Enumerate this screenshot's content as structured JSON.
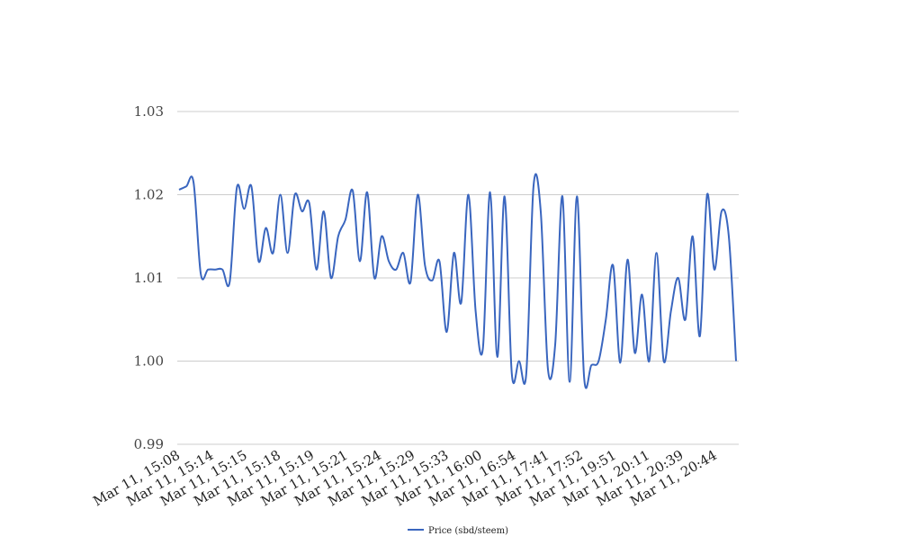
{
  "chart_data": {
    "type": "line",
    "title": "",
    "xlabel": "",
    "ylabel": "",
    "ylim": [
      0.99,
      1.03
    ],
    "y_ticks": [
      "0.99",
      "1.00",
      "1.01",
      "1.02",
      "1.03"
    ],
    "x_tick_labels": [
      "Mar 11, 15:08",
      "Mar 11, 15:14",
      "Mar 11, 15:15",
      "Mar 11, 15:18",
      "Mar 11, 15:19",
      "Mar 11, 15:21",
      "Mar 11, 15:24",
      "Mar 11, 15:29",
      "Mar 11, 15:33",
      "Mar 11, 16:00",
      "Mar 11, 16:54",
      "Mar 11, 17:41",
      "Mar 11, 17:52",
      "Mar 11, 19:51",
      "Mar 11, 20:11",
      "Mar 11, 20:39",
      "Mar 11, 20:44"
    ],
    "grid": true,
    "legend_position": "bottom",
    "series": [
      {
        "name": "Price (sbd/steem)",
        "color": "#3a66bf",
        "values": [
          1.0206,
          1.021,
          1.0215,
          1.0105,
          1.011,
          1.011,
          1.011,
          1.0095,
          1.0209,
          1.0183,
          1.021,
          1.012,
          1.016,
          1.013,
          1.02,
          1.013,
          1.02,
          1.018,
          1.019,
          1.011,
          1.018,
          1.01,
          1.015,
          1.017,
          1.0205,
          1.012,
          1.0203,
          1.01,
          1.015,
          1.012,
          1.011,
          1.013,
          1.0095,
          1.02,
          1.0115,
          1.0097,
          1.012,
          1.0035,
          1.013,
          1.007,
          1.02,
          1.006,
          1.0015,
          1.0203,
          1.0005,
          1.0198,
          0.9985,
          1.0,
          0.9985,
          1.021,
          1.018,
          0.999,
          1.002,
          1.0198,
          0.9975,
          1.0198,
          0.998,
          0.9995,
          1.0,
          1.005,
          1.0115,
          0.9998,
          1.0122,
          1.001,
          1.008,
          1.0,
          1.013,
          1.0,
          1.006,
          1.01,
          1.005,
          1.015,
          1.003,
          1.02,
          1.011,
          1.018,
          1.015,
          1.0
        ]
      }
    ]
  }
}
